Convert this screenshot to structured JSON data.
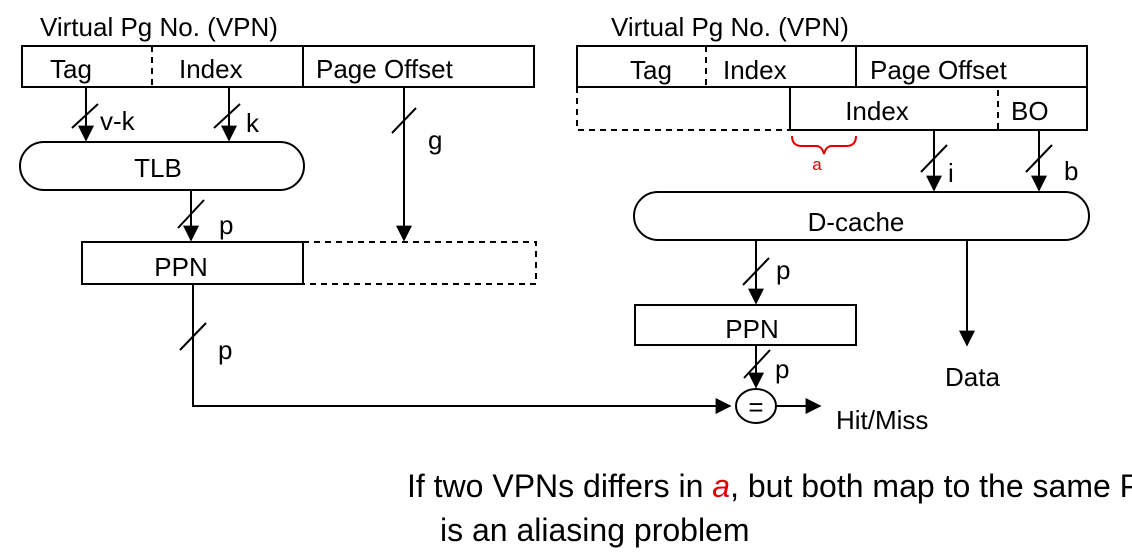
{
  "left": {
    "vpn_title": "Virtual Pg No. (VPN)",
    "tag": "Tag",
    "index": "Index",
    "page_offset": "Page Offset",
    "bits_v_minus_k": "v-k",
    "bits_k": "k",
    "bits_g": "g",
    "tlb": "TLB",
    "bits_p1": "p",
    "ppn": "PPN",
    "bits_p2": "p"
  },
  "right": {
    "vpn_title": "Virtual Pg No. (VPN)",
    "tag": "Tag",
    "index": "Index",
    "page_offset": "Page Offset",
    "cache_index": "Index",
    "bo": "BO",
    "brace_label": "a",
    "bits_i": "i",
    "bits_b": "b",
    "dcache": "D-cache",
    "bits_p1": "p",
    "ppn": "PPN",
    "bits_p2": "p",
    "compare": "=",
    "hit_miss": "Hit/Miss",
    "data": "Data"
  },
  "caption": {
    "line1_before": "If two VPNs differs in ",
    "line1_highlight": "a",
    "line1_after": ", but both map to the same PPN then there",
    "line2": "is an aliasing problem"
  },
  "colors": {
    "highlight": "#e00000",
    "stroke": "#000000"
  }
}
